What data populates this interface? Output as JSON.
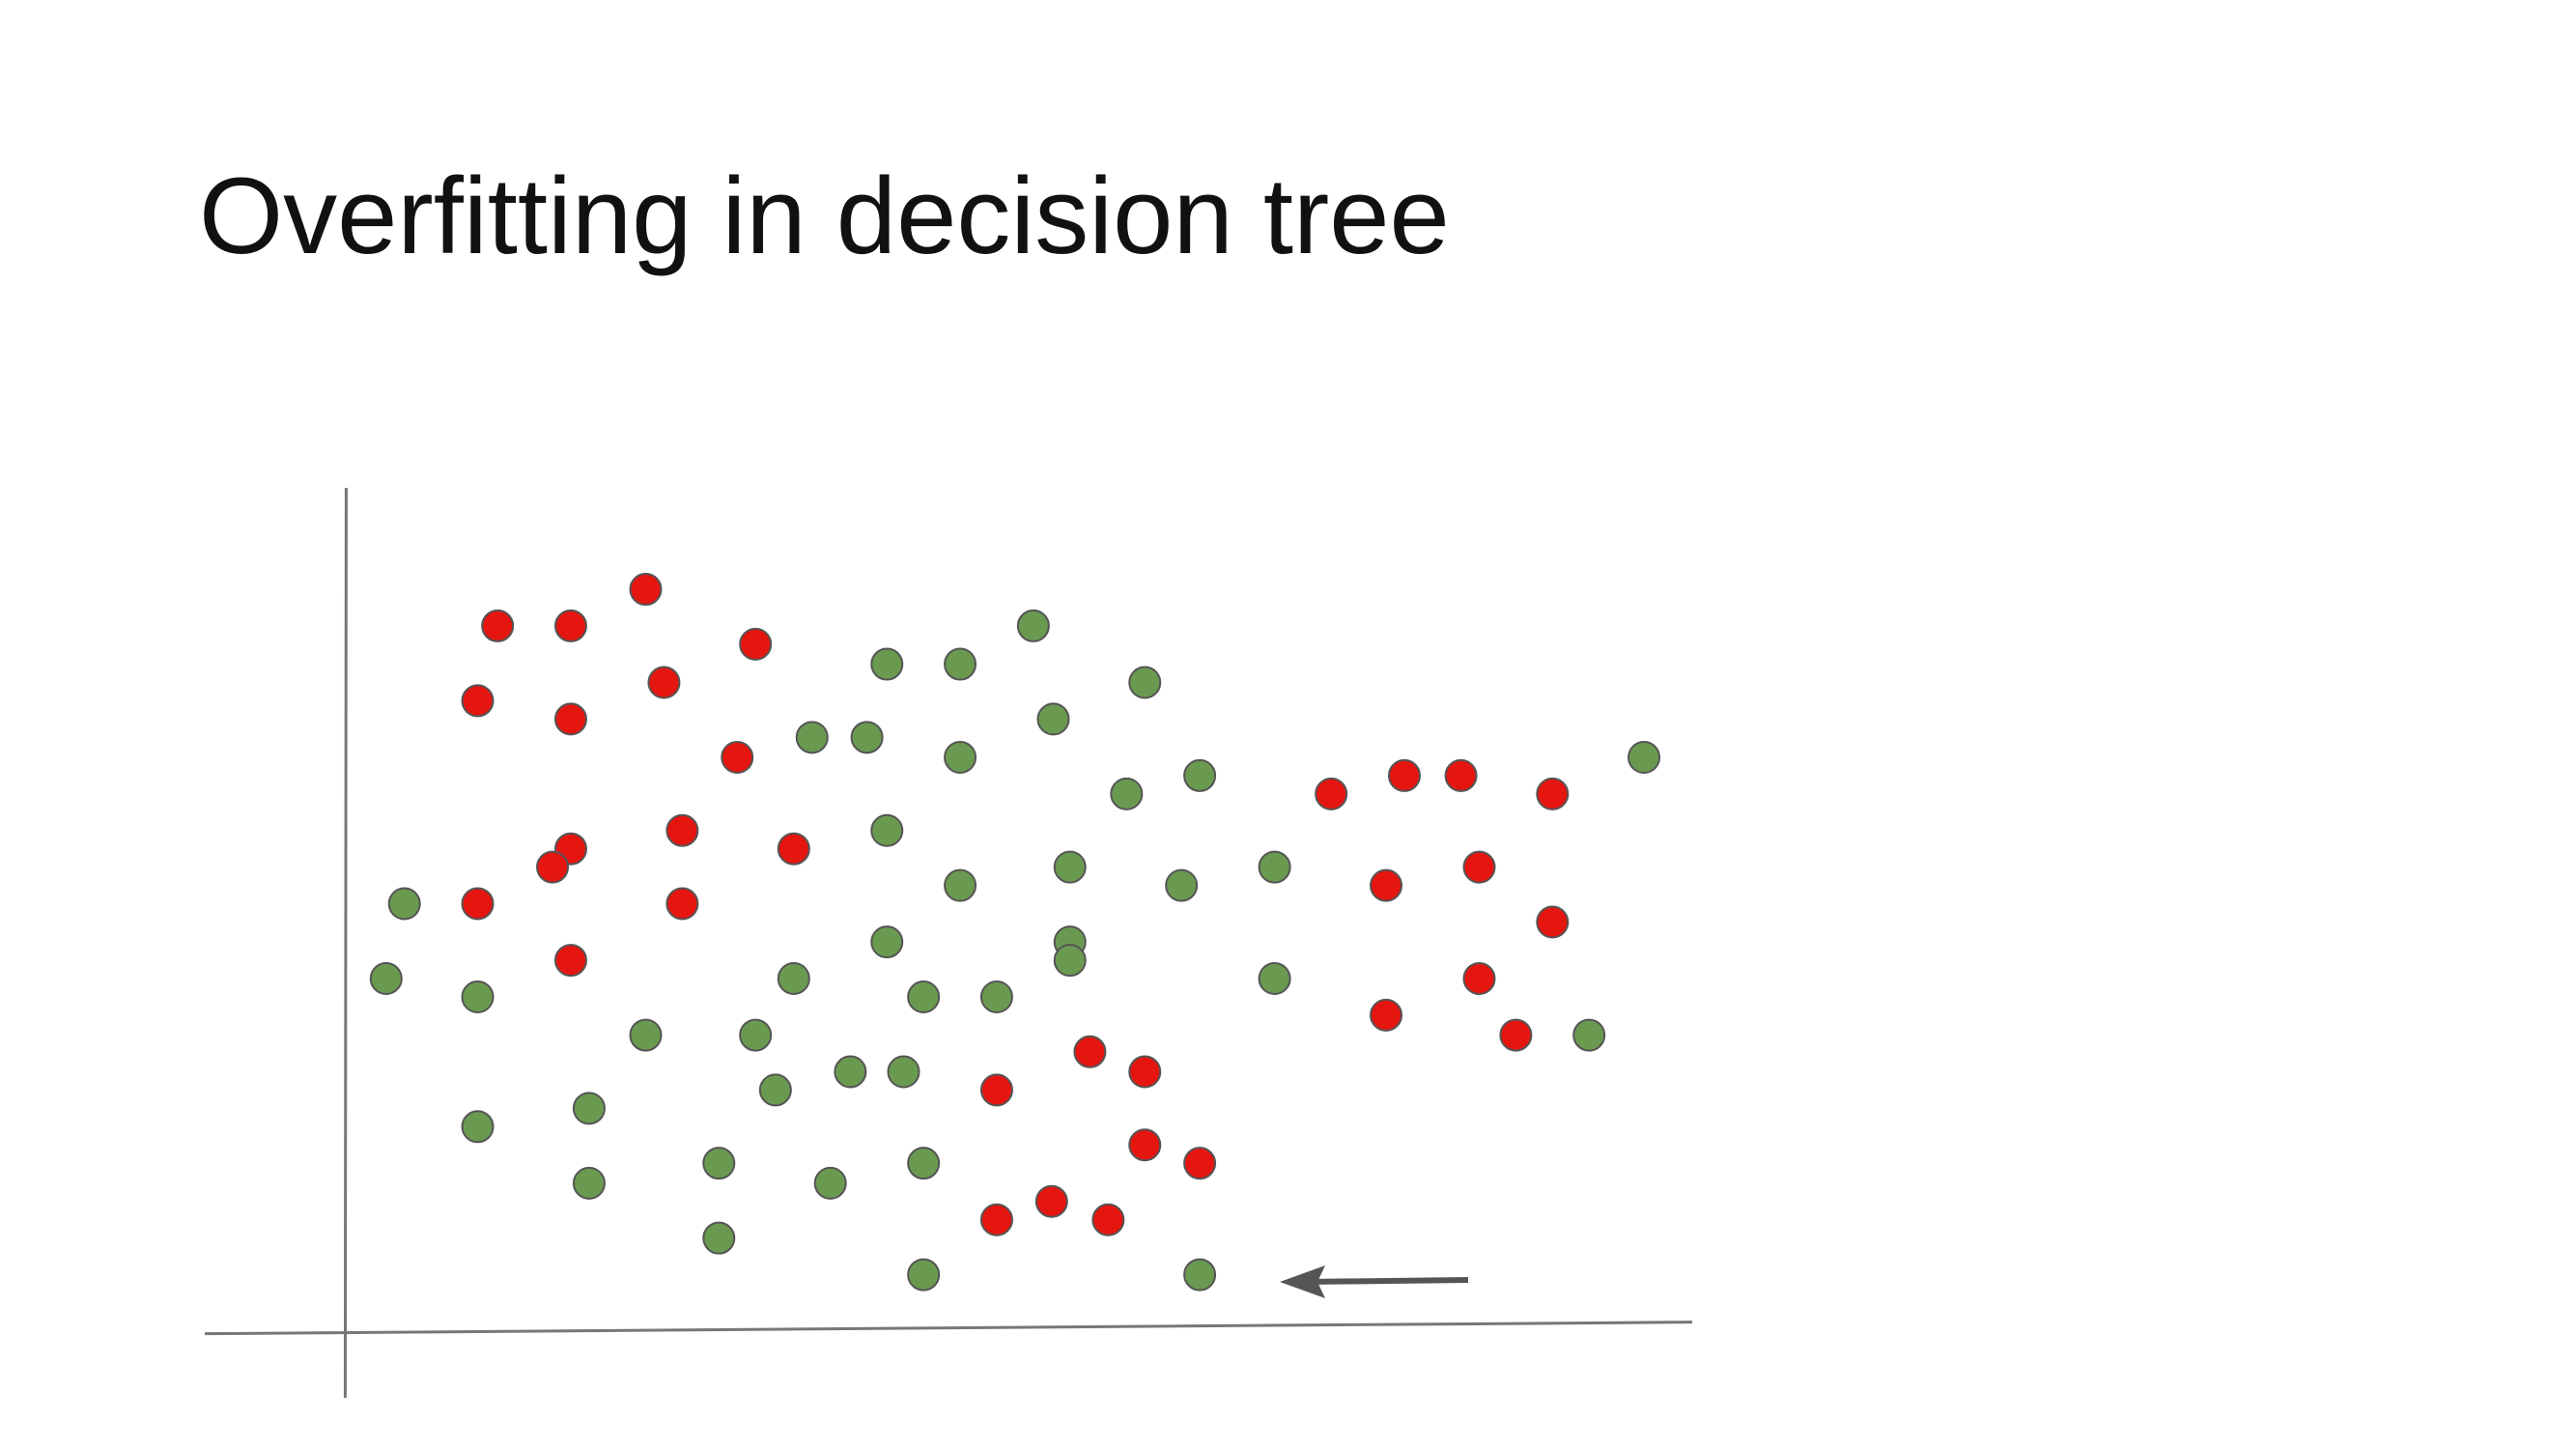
{
  "chart_data": {
    "type": "scatter",
    "title": "Overfitting in decision tree",
    "xlim": [
      -85,
      809
    ],
    "ylim": [
      -42,
      505
    ],
    "series": [
      {
        "color": "#e5150f",
        "x": [
          91,
          135,
          180,
          246,
          79,
          135,
          191,
          235,
          202,
          135,
          124,
          269,
          79,
          202,
          135,
          592,
          636,
          670,
          725,
          625,
          681,
          725,
          681,
          625,
          703,
          447,
          480,
          391,
          480,
          513,
          391,
          424,
          458
        ],
        "values": [
          422,
          422,
          444,
          411,
          377,
          366,
          388,
          343,
          299,
          288,
          277,
          288,
          255,
          255,
          221,
          321,
          332,
          332,
          321,
          266,
          277,
          244,
          210,
          188,
          176,
          166,
          154,
          143,
          110,
          99,
          65,
          76,
          65
        ]
      },
      {
        "color": "#6a9a50",
        "x": [
          413,
          325,
          369,
          480,
          280,
          313,
          425,
          369,
          469,
          513,
          780,
          325,
          435,
          369,
          502,
          558,
          35,
          325,
          435,
          435,
          24,
          79,
          269,
          347,
          391,
          558,
          180,
          246,
          747,
          258,
          303,
          335,
          146,
          79,
          146,
          224,
          291,
          347,
          224,
          347,
          513
        ],
        "values": [
          422,
          399,
          399,
          388,
          355,
          355,
          366,
          343,
          321,
          332,
          343,
          299,
          277,
          266,
          266,
          277,
          255,
          232,
          232,
          221,
          210,
          199,
          210,
          199,
          199,
          210,
          176,
          176,
          176,
          143,
          154,
          154,
          132,
          121,
          87,
          99,
          87,
          99,
          54,
          32,
          32
        ]
      }
    ]
  }
}
